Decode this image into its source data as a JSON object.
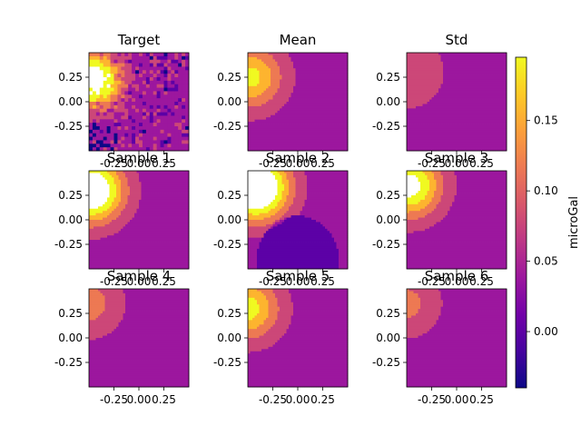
{
  "chart_data": {
    "type": "heatmap",
    "colormap": "plasma",
    "colors": {
      "c0": "#0d0887",
      "c1": "#5c01a6",
      "c2": "#9c179e",
      "c3": "#cc4778",
      "c4": "#ed7953",
      "c5": "#fdb42f",
      "c6": "#f0f921",
      "over": "#ffffff",
      "axis": "#000000",
      "background": "#ffffff"
    },
    "xlim": [
      -0.5,
      0.5
    ],
    "ylim": [
      -0.5,
      0.5
    ],
    "xticks": [
      "-0.25",
      "0.00",
      "0.25"
    ],
    "yticks": [
      "0.25",
      "0.00",
      "-0.25"
    ],
    "colorbar": {
      "label": "microGal",
      "range": [
        -0.04,
        0.195
      ],
      "ticks": [
        "0.15",
        "0.10",
        "0.05",
        "0.00"
      ],
      "tick_values": [
        0.15,
        0.1,
        0.05,
        0.0
      ]
    },
    "panels": [
      {
        "title": "Target",
        "variant": "target",
        "peak": [
          -0.45,
          0.22
        ],
        "sigma": 0.18,
        "amp": 0.18,
        "show_x_ticks": true,
        "show_y_ticks": true
      },
      {
        "title": "Mean",
        "variant": "blob",
        "peak": [
          -0.47,
          0.25
        ],
        "sigma": 0.22,
        "amp": 0.115,
        "show_x_ticks": true,
        "show_y_ticks": true
      },
      {
        "title": "Std",
        "variant": "blob",
        "peak": [
          -0.5,
          0.3
        ],
        "sigma": 0.25,
        "amp": 0.045,
        "show_x_ticks": true,
        "show_y_ticks": true
      },
      {
        "title": "Sample 1",
        "variant": "blob",
        "peak": [
          -0.48,
          0.3
        ],
        "sigma": 0.22,
        "amp": 0.2,
        "show_x_ticks": true,
        "show_y_ticks": true
      },
      {
        "title": "Sample 2",
        "variant": "dip",
        "peak": [
          -0.42,
          0.33
        ],
        "sigma": 0.22,
        "amp": 0.23,
        "show_x_ticks": true,
        "show_y_ticks": true
      },
      {
        "title": "Sample 3",
        "variant": "blob",
        "peak": [
          -0.48,
          0.35
        ],
        "sigma": 0.22,
        "amp": 0.16,
        "show_x_ticks": true,
        "show_y_ticks": true
      },
      {
        "title": "Sample 4",
        "variant": "blob",
        "peak": [
          -0.5,
          0.35
        ],
        "sigma": 0.22,
        "amp": 0.06,
        "show_x_ticks": true,
        "show_y_ticks": true
      },
      {
        "title": "Sample 5",
        "variant": "blob",
        "peak": [
          -0.5,
          0.3
        ],
        "sigma": 0.22,
        "amp": 0.12,
        "show_x_ticks": true,
        "show_y_ticks": true
      },
      {
        "title": "Sample 6",
        "variant": "blob",
        "peak": [
          -0.5,
          0.35
        ],
        "sigma": 0.22,
        "amp": 0.055,
        "show_x_ticks": true,
        "show_y_ticks": true
      }
    ]
  }
}
